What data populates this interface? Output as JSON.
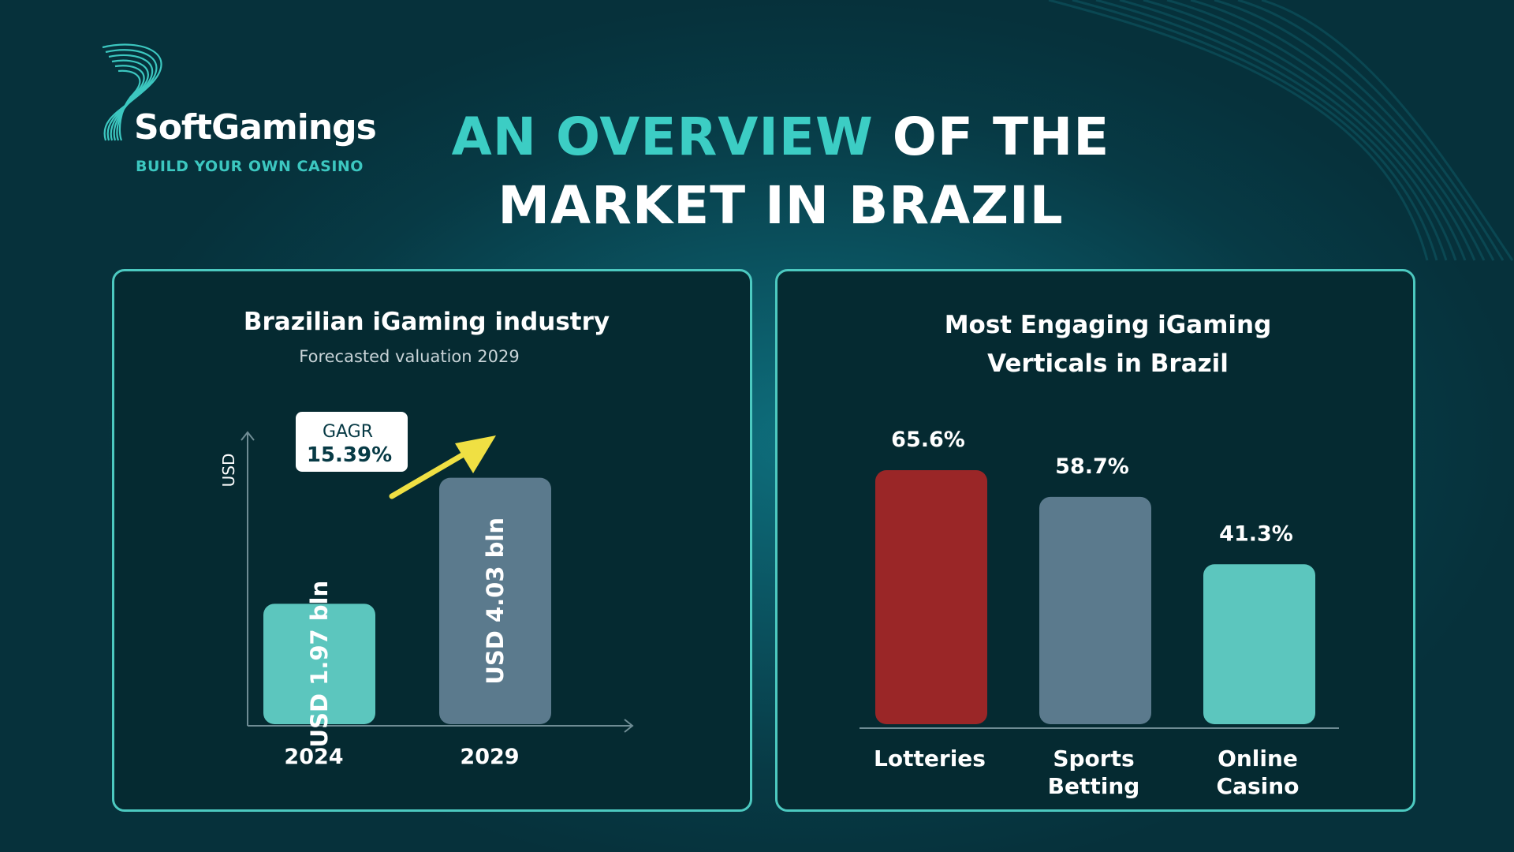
{
  "brand": {
    "name": "SoftGamings",
    "tagline": "BUILD YOUR OWN CASINO"
  },
  "headline": {
    "accent": "AN OVERVIEW",
    "line1_rest": "OF THE",
    "line2": "MARKET IN BRAZIL"
  },
  "colors": {
    "teal": "#5cc6be",
    "slate": "#5b7a8d",
    "red": "#9a2627",
    "arrow_yellow": "#f0e043",
    "accent": "#3ccdc4",
    "panel_border": "#4cc9c0"
  },
  "chart_data": [
    {
      "type": "bar",
      "title": "Brazilian iGaming industry",
      "subtitle": "Forecasted valuation 2029",
      "ylabel": "USD",
      "xlabel": "",
      "categories": [
        "2024",
        "2029"
      ],
      "values": [
        1.97,
        4.03
      ],
      "bar_labels": [
        "USD 1.97 bln",
        "USD 4.03 bln"
      ],
      "bar_colors": [
        "#5cc6be",
        "#5b7a8d"
      ],
      "ylim": [
        0,
        4.8
      ],
      "grid": false,
      "annotation": {
        "label": "GAGR",
        "value": "15.39%"
      }
    },
    {
      "type": "bar",
      "title_lines": [
        "Most Engaging iGaming",
        "Verticals in Brazil"
      ],
      "categories": [
        [
          "Lotteries"
        ],
        [
          "Sports",
          "Betting"
        ],
        [
          "Online",
          "Casino"
        ]
      ],
      "values": [
        65.6,
        58.7,
        41.3
      ],
      "value_labels": [
        "65.6%",
        "58.7%",
        "41.3%"
      ],
      "bar_colors": [
        "#9a2627",
        "#5b7a8d",
        "#5cc6be"
      ],
      "ylim": [
        0,
        65.6
      ],
      "grid": false
    }
  ]
}
